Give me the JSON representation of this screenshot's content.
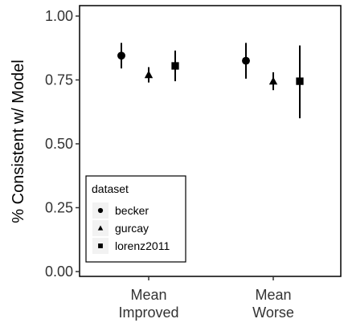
{
  "chart_data": {
    "type": "scatter",
    "title": "",
    "xlabel": "",
    "ylabel": "% Consistent w/ Model",
    "categories": [
      [
        "Mean",
        "Improved"
      ],
      [
        "Mean",
        "Worse"
      ]
    ],
    "ylim": [
      0,
      1
    ],
    "yticks": [
      "0.00",
      "0.25",
      "0.50",
      "0.75",
      "1.00"
    ],
    "grid": false,
    "legend": {
      "title": "dataset",
      "placement": "bottom-left inside"
    },
    "series": [
      {
        "name": "becker",
        "shape": "circle",
        "points": [
          {
            "category": 0,
            "y": 0.845,
            "lo": 0.795,
            "hi": 0.895
          },
          {
            "category": 1,
            "y": 0.825,
            "lo": 0.755,
            "hi": 0.895
          }
        ]
      },
      {
        "name": "gurcay",
        "shape": "triangle",
        "points": [
          {
            "category": 0,
            "y": 0.77,
            "lo": 0.74,
            "hi": 0.8
          },
          {
            "category": 1,
            "y": 0.745,
            "lo": 0.71,
            "hi": 0.78
          }
        ]
      },
      {
        "name": "lorenz2011",
        "shape": "square",
        "points": [
          {
            "category": 0,
            "y": 0.805,
            "lo": 0.745,
            "hi": 0.865
          },
          {
            "category": 1,
            "y": 0.745,
            "lo": 0.6,
            "hi": 0.885
          }
        ]
      }
    ],
    "colors": {
      "marks": "#000000",
      "axis": "#333333",
      "background": "#ffffff"
    }
  }
}
